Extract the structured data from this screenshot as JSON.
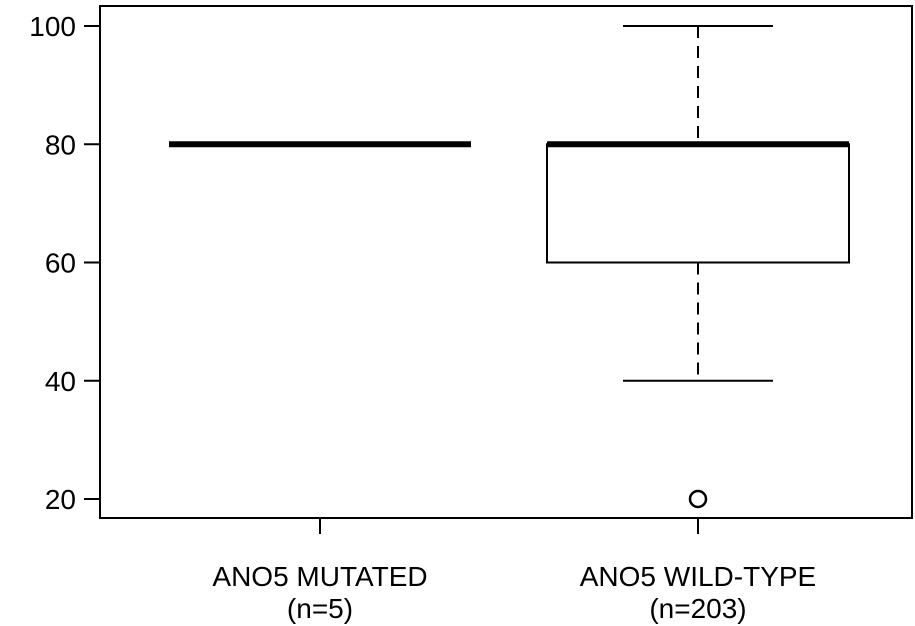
{
  "chart_data": {
    "type": "boxplot",
    "title": "",
    "xlabel": "",
    "ylabel": "",
    "ylim": [
      17,
      104
    ],
    "yticks": [
      20,
      40,
      60,
      80,
      100
    ],
    "ytick_labels": [
      "20",
      "40",
      "60",
      "80",
      "100"
    ],
    "grid": false,
    "legend": "none",
    "categories": [
      {
        "label_line1": "ANO5 MUTATED",
        "label_line2": "(n=5)"
      },
      {
        "label_line1": "ANO5 WILD-TYPE",
        "label_line2": "(n=203)"
      }
    ],
    "series": [
      {
        "q1": 80,
        "median": 80,
        "q3": 80,
        "whisker_low": 80,
        "whisker_high": 80,
        "outliers": []
      },
      {
        "q1": 60,
        "median": 80,
        "q3": 80,
        "whisker_low": 40,
        "whisker_high": 100,
        "outliers": [
          20
        ]
      }
    ],
    "colors": {
      "ink": "#000000",
      "background": "#ffffff"
    }
  }
}
